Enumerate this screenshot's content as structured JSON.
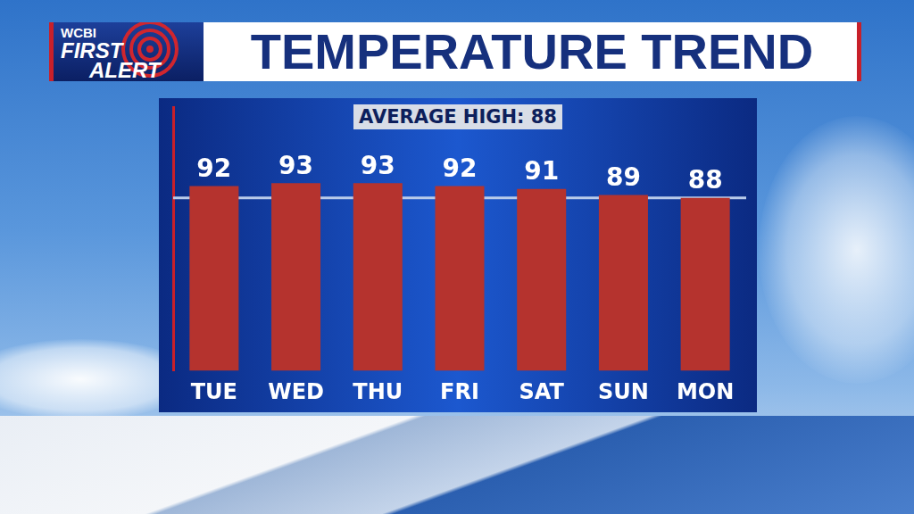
{
  "chart_data": {
    "type": "bar",
    "title": "TEMPERATURE TREND",
    "logo": {
      "station": "WCBI",
      "lines": [
        "FIRST",
        "ALERT"
      ]
    },
    "categories": [
      "TUE",
      "WED",
      "THU",
      "FRI",
      "SAT",
      "SUN",
      "MON"
    ],
    "values": [
      92,
      93,
      93,
      92,
      91,
      89,
      88
    ],
    "color": "#b5332e",
    "ylim": [
      29,
      119
    ],
    "reference_line": {
      "label": "AVERAGE HIGH: 88",
      "value": 88
    },
    "data_labels": true,
    "grid": false,
    "tick_labels": "x"
  }
}
